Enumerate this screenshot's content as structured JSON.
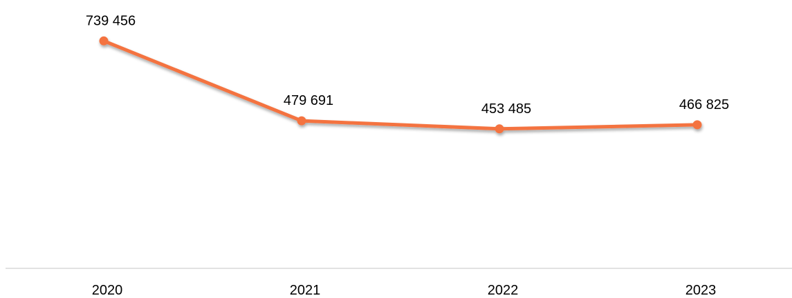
{
  "chart_data": {
    "type": "line",
    "categories": [
      "2020",
      "2021",
      "2022",
      "2023"
    ],
    "series": [
      {
        "values": [
          739456,
          479691,
          453485,
          466825
        ],
        "labels": [
          "739 456",
          "479 691",
          "453 485",
          "466 825"
        ],
        "color": "#F4733F"
      }
    ],
    "ylim": [
      0,
      850000
    ],
    "grid": false,
    "legend": "none",
    "axis_color": "#D9D9D9"
  }
}
